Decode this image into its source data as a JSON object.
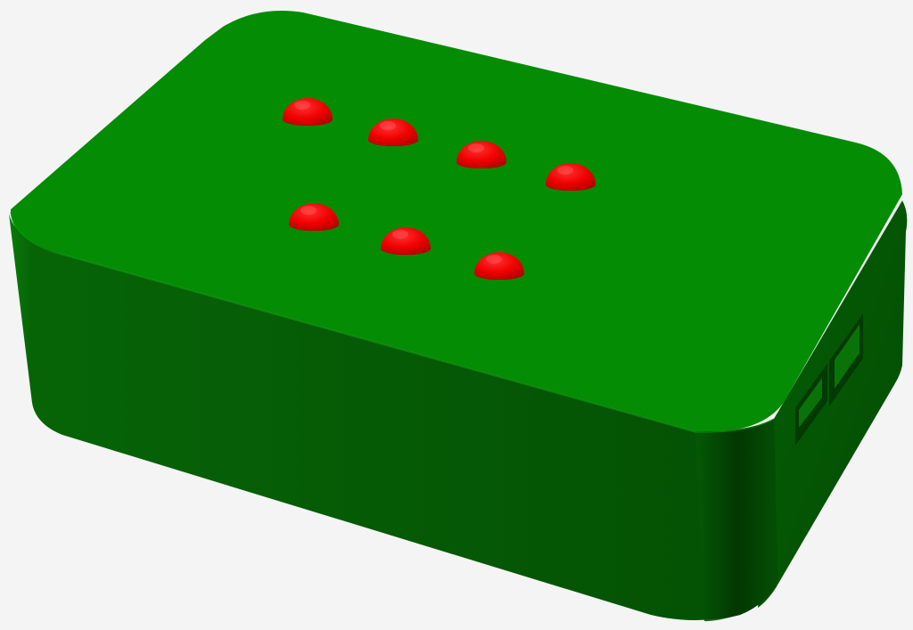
{
  "scene": {
    "background": "#f4f4f4",
    "colors": {
      "top": "#048c04",
      "front_side": "#055d05",
      "front_side_shade": "#034a03",
      "right_side": "#045304",
      "edge_highlight": "#0a9a0a",
      "slot_inner": "#023a02",
      "slot_floor": "#06710a",
      "dome": "#f40000",
      "dome_dark": "#a00000",
      "dome_highlight": "#ff6a6a"
    },
    "dome_count": 7,
    "slot_count": 2
  }
}
